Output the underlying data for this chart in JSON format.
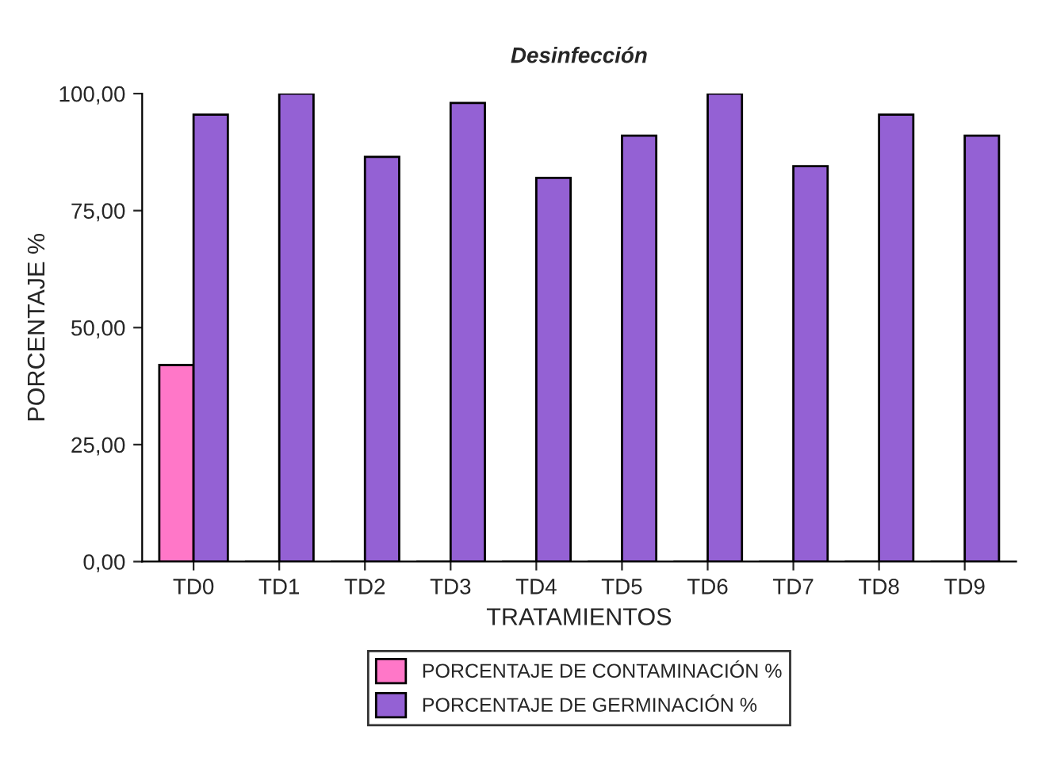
{
  "chart_data": {
    "type": "bar",
    "title": "Desinfección",
    "xlabel": "TRATAMIENTOS",
    "ylabel": "PORCENTAJE %",
    "categories": [
      "TD0",
      "TD1",
      "TD2",
      "TD3",
      "TD4",
      "TD5",
      "TD6",
      "TD7",
      "TD8",
      "TD9"
    ],
    "series": [
      {
        "name": "PORCENTAJE DE CONTAMINACIÓN %",
        "color": "#ff77c8",
        "values": [
          42,
          0,
          0,
          0,
          0,
          0,
          0,
          0,
          0,
          0
        ]
      },
      {
        "name": "PORCENTAJE DE GERMINACIÓN %",
        "color": "#9461d4",
        "values": [
          95.5,
          100,
          86.5,
          98,
          82,
          91,
          100,
          84.5,
          95.5,
          91
        ]
      }
    ],
    "ylim": [
      0,
      100
    ],
    "yticks": [
      {
        "value": 0,
        "label": "0,00"
      },
      {
        "value": 25,
        "label": "25,00"
      },
      {
        "value": 50,
        "label": "50,00"
      },
      {
        "value": 75,
        "label": "75,00"
      },
      {
        "value": 100,
        "label": "100,00"
      }
    ],
    "grid": false,
    "legend": "bottom"
  }
}
